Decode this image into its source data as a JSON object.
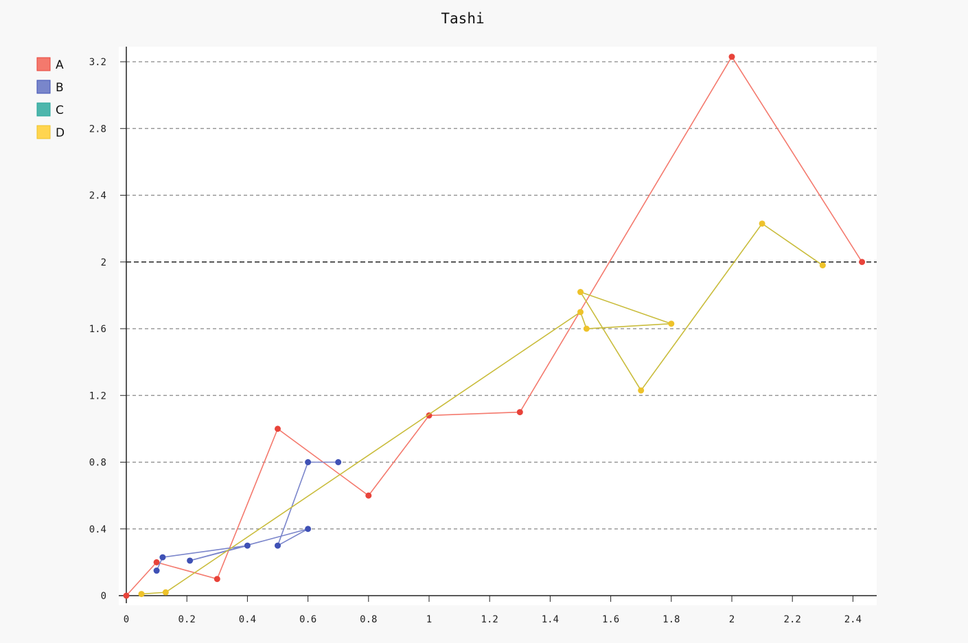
{
  "chart_data": {
    "type": "scatter",
    "title": "Tashi",
    "xlabel": "",
    "ylabel": "",
    "xlim": [
      0,
      2.47
    ],
    "ylim": [
      0,
      3.2
    ],
    "x_ticks": [
      "0",
      "0.2",
      "0.4",
      "0.6",
      "0.8",
      "1",
      "1.2",
      "1.4",
      "1.6",
      "1.8",
      "2",
      "2.2",
      "2.4"
    ],
    "x_tick_values": [
      0,
      0.2,
      0.4,
      0.6,
      0.8,
      1,
      1.2,
      1.4,
      1.6,
      1.8,
      2,
      2.2,
      2.4
    ],
    "y_ticks": [
      "0",
      "0.4",
      "0.8",
      "1.2",
      "1.6",
      "2",
      "2.4",
      "2.8",
      "3.2"
    ],
    "y_tick_values": [
      0,
      0.4,
      0.8,
      1.2,
      1.6,
      2,
      2.4,
      2.8,
      3.2
    ],
    "grid": "horizontal dashed",
    "highlight_y": 2,
    "legend_position": "top-left",
    "series": [
      {
        "name": "A",
        "color": "#f4796d",
        "marker_color": "#e8433a",
        "legend_color": "#f4796d",
        "points": [
          [
            0,
            0
          ],
          [
            0.1,
            0.2
          ],
          [
            0.3,
            0.1
          ],
          [
            0.5,
            1.0
          ],
          [
            0.8,
            0.6
          ],
          [
            1.0,
            1.08
          ],
          [
            1.3,
            1.1
          ],
          [
            2.0,
            3.23
          ],
          [
            2.43,
            2.0
          ]
        ]
      },
      {
        "name": "B",
        "color": "#7a85cb",
        "marker_color": "#3f51b5",
        "legend_color": "#7986cb",
        "points": [
          [
            0.1,
            0.15
          ],
          [
            0.12,
            0.23
          ],
          [
            0.4,
            0.3
          ],
          [
            0.21,
            0.21
          ],
          [
            0.6,
            0.4
          ],
          [
            0.5,
            0.3
          ],
          [
            0.6,
            0.8
          ],
          [
            0.7,
            0.8
          ]
        ]
      },
      {
        "name": "C",
        "color": "#4db6ac",
        "marker_color": "#26a69a",
        "legend_color": "#4db6ac",
        "points": []
      },
      {
        "name": "D",
        "color": "#c9bc3b",
        "marker_color": "#eec22a",
        "legend_color": "#ffd54f",
        "points": [
          [
            0.05,
            0.01
          ],
          [
            0.13,
            0.02
          ],
          [
            1.5,
            1.7
          ],
          [
            1.52,
            1.6
          ],
          [
            1.8,
            1.63
          ],
          [
            1.5,
            1.82
          ],
          [
            1.7,
            1.23
          ],
          [
            2.1,
            2.23
          ],
          [
            2.3,
            1.98
          ]
        ]
      }
    ]
  }
}
